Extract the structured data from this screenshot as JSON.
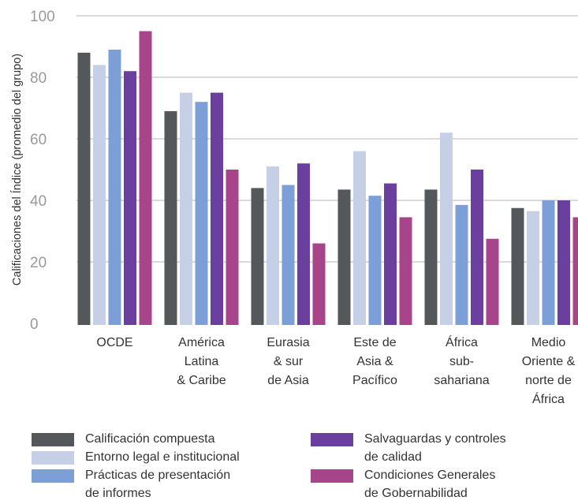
{
  "chart_data": {
    "type": "bar",
    "ylabel": "Calificaciones del Índice (promedio del grupo)",
    "ylim": [
      0,
      100
    ],
    "yticks": [
      "0",
      "20",
      "40",
      "60",
      "80",
      "100"
    ],
    "grid": true,
    "legend_position": "bottom",
    "categories": [
      [
        "OCDE"
      ],
      [
        "América",
        "Latina",
        "& Caribe"
      ],
      [
        "Eurasia",
        "& sur",
        "de Asia"
      ],
      [
        "Este de",
        "Asia &",
        "Pacífico"
      ],
      [
        "África",
        "sub-",
        "sahariana"
      ],
      [
        "Medio",
        "Oriente &",
        "norte de",
        "África"
      ]
    ],
    "series": [
      {
        "name": [
          "Calificación compuesta"
        ],
        "color": "#54585a",
        "values": [
          88,
          69,
          44,
          43.5,
          43.5,
          37.5
        ]
      },
      {
        "name": [
          "Entorno legal e institucional"
        ],
        "color": "#c5cfe6",
        "values": [
          84,
          75,
          51,
          56,
          62,
          36.5
        ]
      },
      {
        "name": [
          "Prácticas de presentación",
          "de informes"
        ],
        "color": "#7b9fd6",
        "values": [
          89,
          72,
          45,
          41.5,
          38.5,
          40
        ]
      },
      {
        "name": [
          "Salvaguardas y controles",
          "de calidad"
        ],
        "color": "#6b3f9e",
        "values": [
          82,
          75,
          52,
          45.5,
          50,
          40
        ]
      },
      {
        "name": [
          "Condiciones Generales",
          "de Gobernabilidad"
        ],
        "color": "#a8448a",
        "values": [
          95,
          50,
          26,
          34.5,
          27.5,
          34.5
        ]
      }
    ]
  }
}
